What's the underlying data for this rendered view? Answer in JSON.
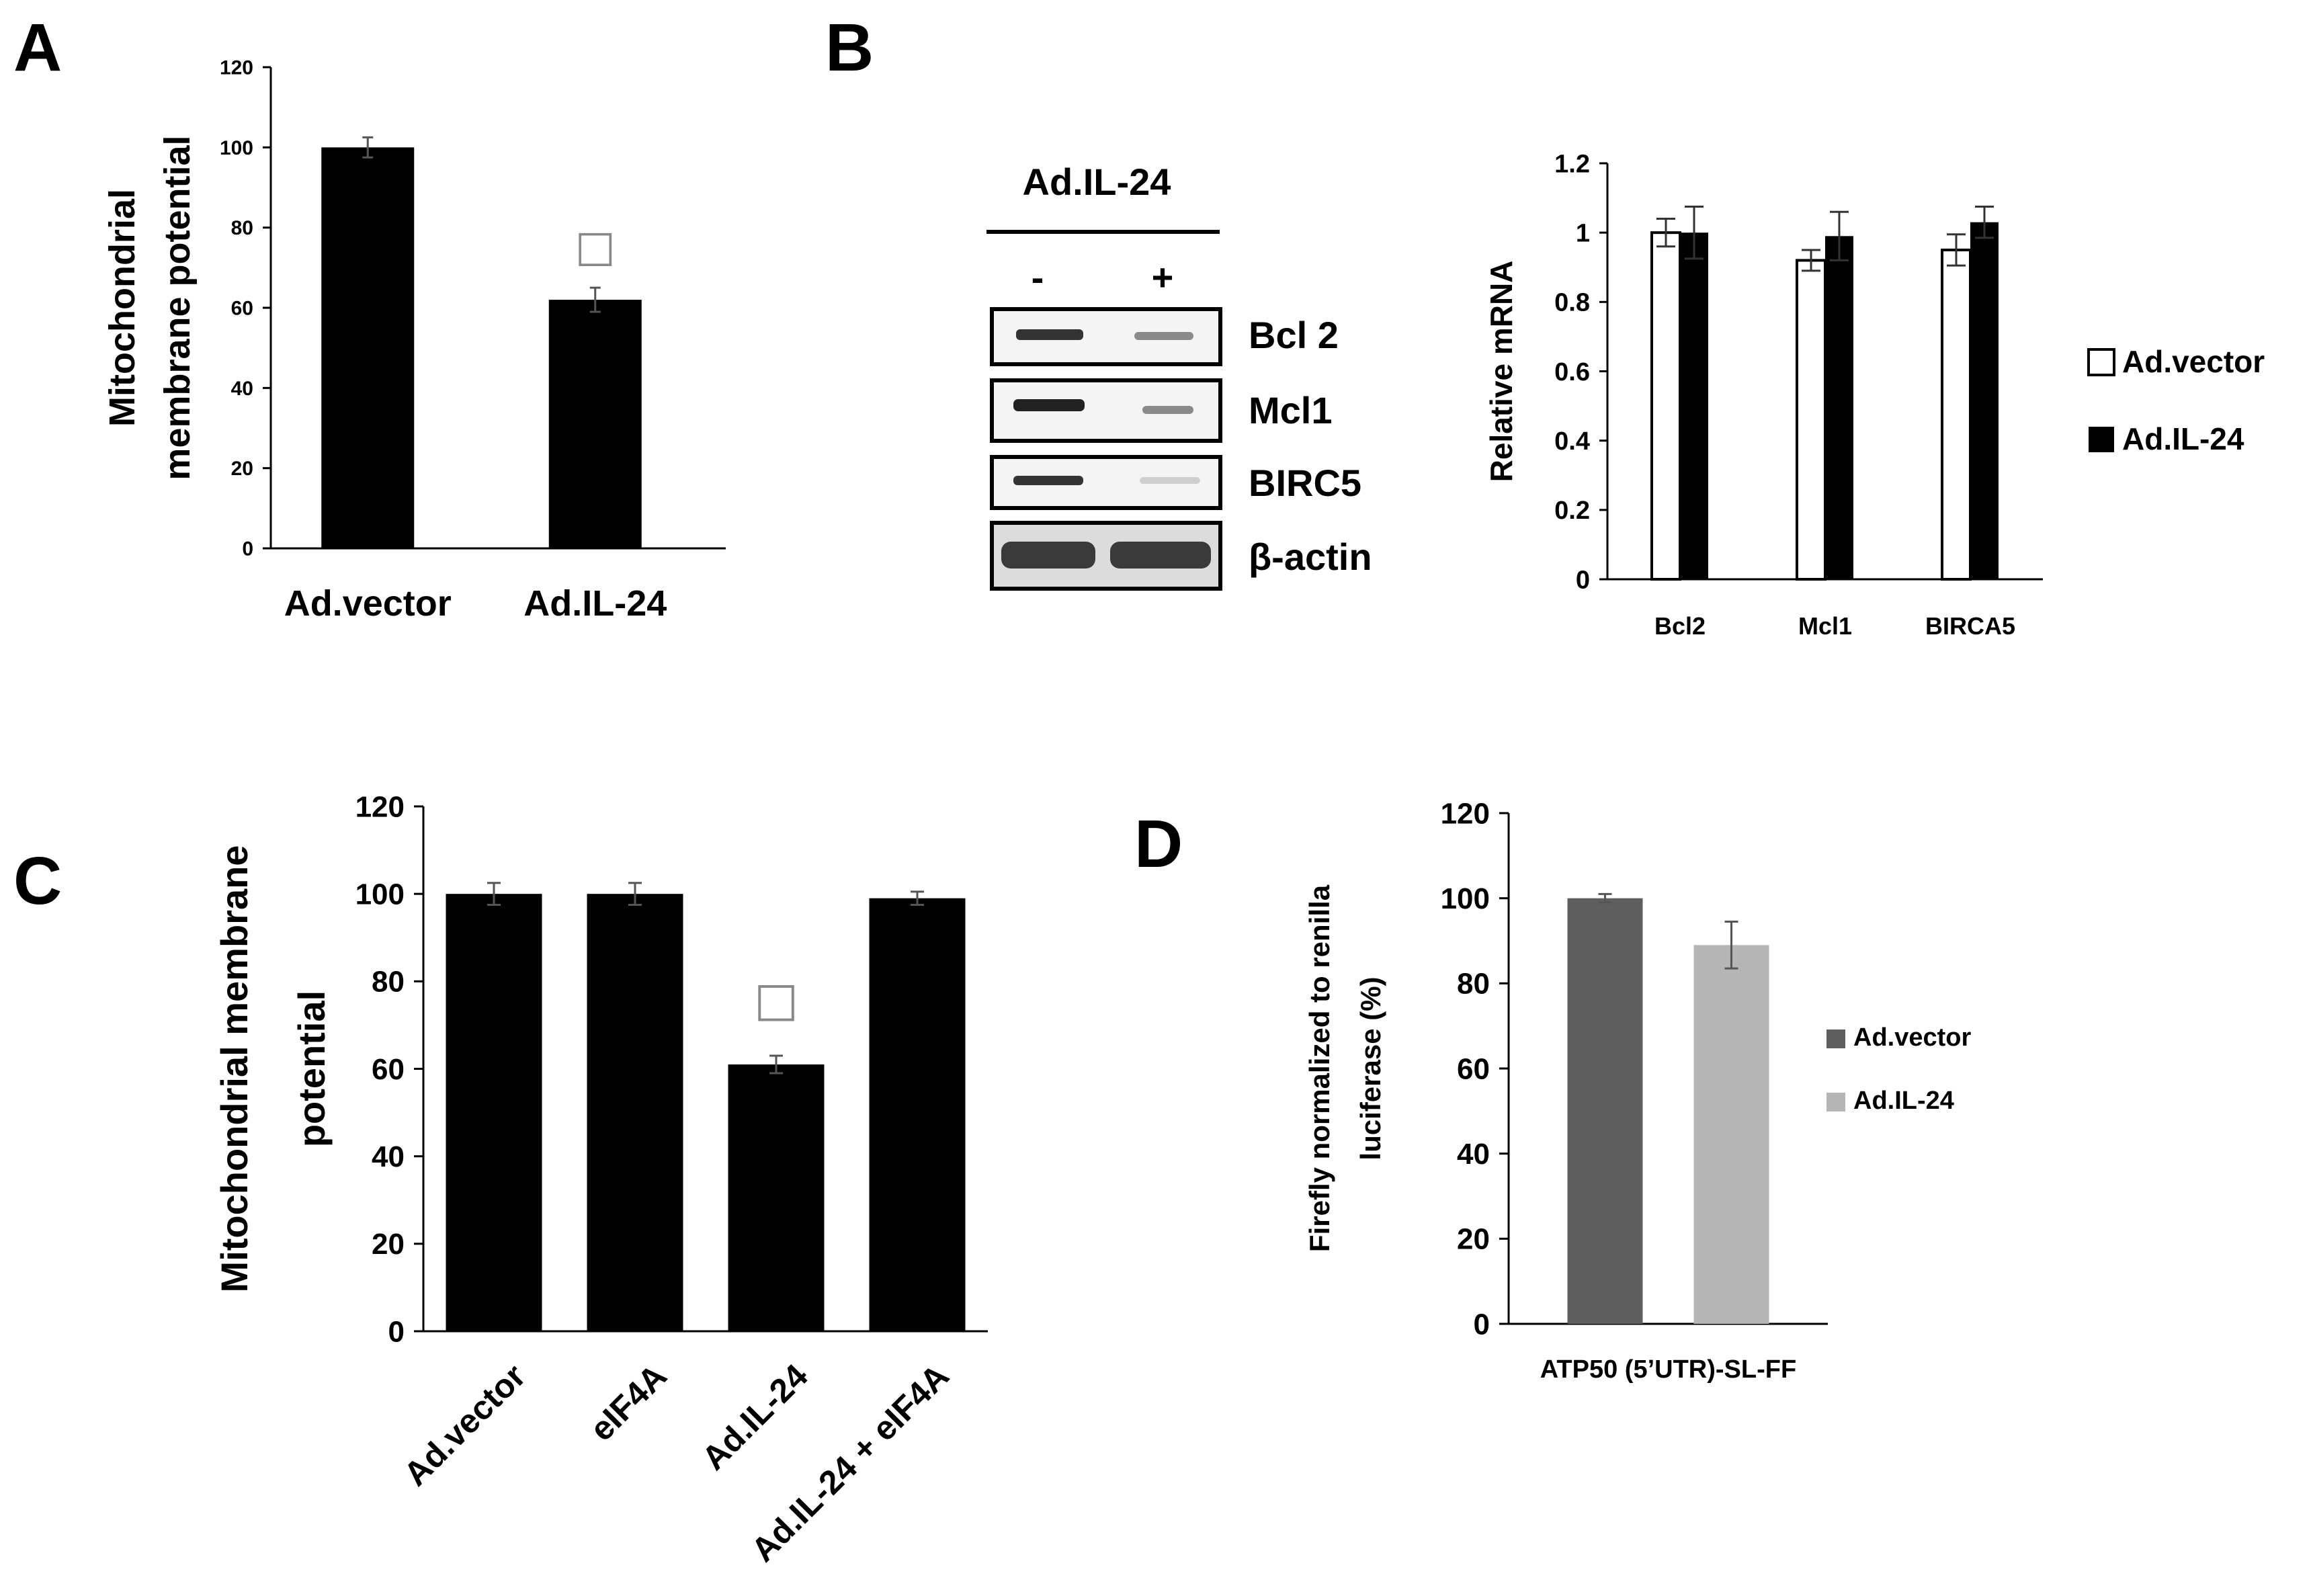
{
  "panels": {
    "a": "A",
    "b": "B",
    "c": "C",
    "d": "D"
  },
  "blot": {
    "title": "Ad.IL-24",
    "minus": "-",
    "plus": "+",
    "rows": [
      "Bcl 2",
      "Mcl1",
      "BIRC5",
      "β-actin"
    ]
  },
  "colors": {
    "black": "#000000",
    "white": "#ffffff",
    "dark_gray": "#5f5f5f",
    "light_gray": "#b5b5b5"
  },
  "chart_data": [
    {
      "panel": "A",
      "type": "bar",
      "title": "",
      "ylabel": [
        "Mitochondrial",
        "membrane potential"
      ],
      "xlabel": "",
      "categories": [
        "Ad.vector",
        "Ad.IL-24"
      ],
      "values": [
        100,
        62
      ],
      "errors": [
        2.5,
        3
      ],
      "ylim": [
        0,
        120
      ],
      "yticks": [
        "0",
        "20",
        "40",
        "60",
        "80",
        "100",
        "120"
      ],
      "significance": [
        {
          "category": "Ad.IL-24",
          "symbol": "□"
        }
      ]
    },
    {
      "panel": "B",
      "type": "bar",
      "title": "",
      "ylabel": "Relative mRNA",
      "xlabel": "",
      "categories": [
        "Bcl2",
        "Mcl1",
        "BIRCA5"
      ],
      "series": [
        {
          "name": "Ad.vector",
          "color": "#ffffff",
          "values": [
            1.0,
            0.92,
            0.95
          ],
          "errors": [
            0.04,
            0.03,
            0.045
          ]
        },
        {
          "name": "Ad.IL-24",
          "color": "#000000",
          "values": [
            1.0,
            0.99,
            1.03
          ],
          "errors": [
            0.075,
            0.07,
            0.045
          ]
        }
      ],
      "ylim": [
        0,
        1.2
      ],
      "yticks": [
        "0",
        "0.2",
        "0.4",
        "0.6",
        "0.8",
        "1",
        "1.2"
      ],
      "legend": [
        "Ad.vector",
        "Ad.IL-24"
      ],
      "legend_position": "right"
    },
    {
      "panel": "C",
      "type": "bar",
      "title": "",
      "ylabel": [
        "Mitochondrial membrane",
        "potential"
      ],
      "xlabel": "",
      "categories": [
        "Ad.vector",
        "eIF4A",
        "Ad.IL-24",
        "Ad.IL-24 + eIF4A"
      ],
      "values": [
        100,
        100,
        61,
        99
      ],
      "errors": [
        2.5,
        2.5,
        2,
        1.5
      ],
      "ylim": [
        0,
        120
      ],
      "yticks": [
        "0",
        "20",
        "40",
        "60",
        "80",
        "100",
        "120"
      ],
      "significance": [
        {
          "category": "Ad.IL-24",
          "symbol": "□"
        }
      ]
    },
    {
      "panel": "D",
      "type": "bar",
      "title": "",
      "ylabel": [
        "Firefly normalized to renilla",
        "luciferase (%)"
      ],
      "xlabel": "ATP50 (5’UTR)-SL-FF",
      "categories": [
        "ATP50 (5’UTR)-SL-FF"
      ],
      "series": [
        {
          "name": "Ad.vector",
          "color": "#5f5f5f",
          "values": [
            100
          ],
          "errors": [
            1
          ]
        },
        {
          "name": "Ad.IL-24",
          "color": "#b5b5b5",
          "values": [
            89
          ],
          "errors": [
            5.5
          ]
        }
      ],
      "ylim": [
        0,
        120
      ],
      "yticks": [
        "0",
        "20",
        "40",
        "60",
        "80",
        "100",
        "120"
      ],
      "legend": [
        "Ad.vector",
        "Ad.IL-24"
      ],
      "legend_position": "right"
    }
  ]
}
